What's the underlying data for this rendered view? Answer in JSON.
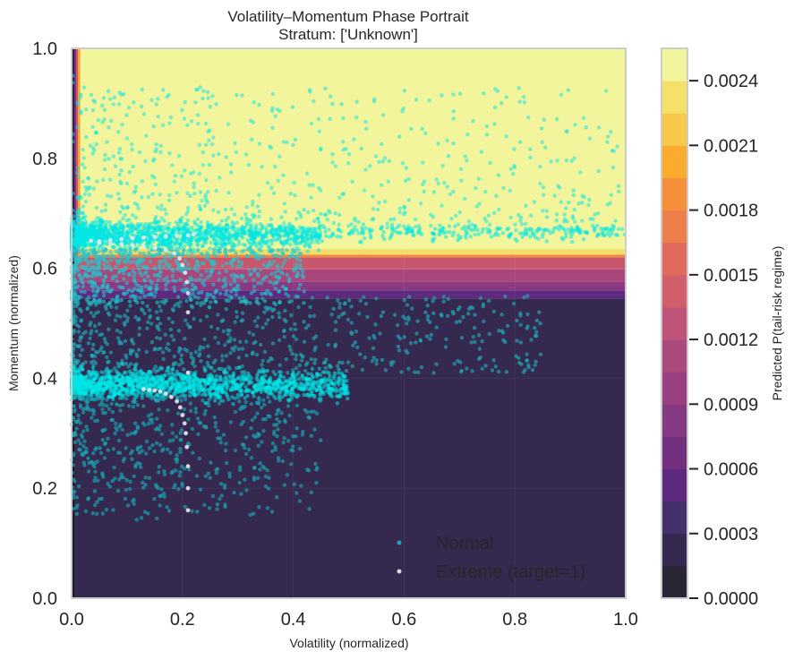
{
  "chart_data": {
    "type": "scatter",
    "title": "Volatility–Momentum Phase Portrait",
    "subtitle": "Stratum: ['Unknown']",
    "xlabel": "Volatility (normalized)",
    "ylabel": "Momentum (normalized)",
    "xlim": [
      0.0,
      1.0
    ],
    "ylim": [
      0.0,
      1.0
    ],
    "xticks": [
      "0.0",
      "0.2",
      "0.4",
      "0.6",
      "0.8",
      "1.0"
    ],
    "yticks": [
      "0.0",
      "0.2",
      "0.4",
      "0.6",
      "0.8",
      "1.0"
    ],
    "grid": true,
    "background": {
      "type": "filled_contour",
      "description": "Predicted P(tail-risk regime) over volatility x momentum",
      "regions": [
        {
          "momentum_range": [
            0.0,
            0.545
          ],
          "level": 0.00025,
          "color": "#35294f"
        },
        {
          "momentum_range": [
            0.545,
            0.56
          ],
          "level": 0.0006,
          "color": "#5e2a80"
        },
        {
          "momentum_range": [
            0.56,
            0.575
          ],
          "level": 0.0009,
          "color": "#8a3a82"
        },
        {
          "momentum_range": [
            0.575,
            0.598
          ],
          "level": 0.0011,
          "color": "#a9477c"
        },
        {
          "momentum_range": [
            0.598,
            0.62
          ],
          "level": 0.0013,
          "color": "#c8576e"
        },
        {
          "momentum_range": [
            0.62,
            0.625
          ],
          "level": 0.0018,
          "color": "#ef8a3b"
        },
        {
          "momentum_range": [
            0.625,
            0.635
          ],
          "level": 0.0023,
          "color": "#f2dc6a"
        },
        {
          "momentum_range": [
            0.635,
            1.0
          ],
          "level": 0.0025,
          "color": "#f2f59b"
        }
      ],
      "left_edge_low_volatility_strip": {
        "volatility_range": [
          0.0,
          0.015
        ],
        "colors": [
          "#1f1a2e",
          "#5e2a80",
          "#d0526a",
          "#f5a62a"
        ]
      }
    },
    "colorbar": {
      "label": "Predicted P(tail-risk regime)",
      "ticks": [
        "0.0000",
        "0.0003",
        "0.0006",
        "0.0009",
        "0.0012",
        "0.0015",
        "0.0018",
        "0.0021",
        "0.0024"
      ],
      "range": [
        0.0,
        0.00255
      ],
      "bands": [
        "#2b2635",
        "#35294f",
        "#44306a",
        "#5e2a80",
        "#72307f",
        "#863a84",
        "#9a4082",
        "#ad4a7c",
        "#c0547a",
        "#d25e6c",
        "#e26a5d",
        "#ee7e4a",
        "#f58f3a",
        "#fbab2e",
        "#f8c84c",
        "#f4e06a",
        "#f2f59b"
      ]
    },
    "series": [
      {
        "name": "Normal",
        "color": "#00e5e5",
        "opacity": 0.55,
        "clusters": [
          {
            "label": "upper band",
            "center": [
              0.12,
              0.655
            ],
            "x_extent": [
              0.0,
              1.0
            ],
            "y_spread": 0.02,
            "density": "very high near x<0.35"
          },
          {
            "label": "upper scatter",
            "x_range": [
              0.01,
              1.0
            ],
            "y_range": [
              0.66,
              0.99
            ],
            "density": "decreasing with height"
          },
          {
            "label": "lower band",
            "center": [
              0.15,
              0.385
            ],
            "x_extent": [
              0.0,
              0.5
            ],
            "y_spread": 0.02,
            "density": "very high"
          },
          {
            "label": "mid scatter",
            "x_range": [
              0.0,
              0.85
            ],
            "y_range": [
              0.41,
              0.62
            ]
          },
          {
            "label": "lower scatter",
            "x_range": [
              0.0,
              0.45
            ],
            "y_range": [
              0.13,
              0.36
            ]
          }
        ]
      },
      {
        "name": "Extreme (target=1)",
        "color": "#e6e6f0",
        "points_description": "two trajectories: row at momentum ~0.65 from vol 0.03-0.22 curving down to ~0.52 at vol 0.21; row at momentum ~0.37 from vol 0.13-0.21 descending to ~0.16 at vol 0.21",
        "points": [
          [
            0.035,
            0.65
          ],
          [
            0.05,
            0.649
          ],
          [
            0.07,
            0.651
          ],
          [
            0.09,
            0.653
          ],
          [
            0.11,
            0.655
          ],
          [
            0.13,
            0.656
          ],
          [
            0.15,
            0.657
          ],
          [
            0.17,
            0.658
          ],
          [
            0.19,
            0.659
          ],
          [
            0.21,
            0.66
          ],
          [
            0.22,
            0.662
          ],
          [
            0.05,
            0.646
          ],
          [
            0.07,
            0.645
          ],
          [
            0.09,
            0.644
          ],
          [
            0.11,
            0.642
          ],
          [
            0.13,
            0.64
          ],
          [
            0.15,
            0.637
          ],
          [
            0.17,
            0.633
          ],
          [
            0.185,
            0.627
          ],
          [
            0.195,
            0.618
          ],
          [
            0.2,
            0.606
          ],
          [
            0.205,
            0.592
          ],
          [
            0.208,
            0.575
          ],
          [
            0.21,
            0.555
          ],
          [
            0.21,
            0.52
          ],
          [
            0.13,
            0.38
          ],
          [
            0.14,
            0.379
          ],
          [
            0.15,
            0.378
          ],
          [
            0.16,
            0.376
          ],
          [
            0.17,
            0.372
          ],
          [
            0.18,
            0.366
          ],
          [
            0.19,
            0.358
          ],
          [
            0.196,
            0.347
          ],
          [
            0.2,
            0.333
          ],
          [
            0.204,
            0.318
          ],
          [
            0.206,
            0.3
          ],
          [
            0.208,
            0.275
          ],
          [
            0.21,
            0.24
          ],
          [
            0.21,
            0.2
          ],
          [
            0.21,
            0.16
          ],
          [
            0.21,
            0.41
          ]
        ]
      }
    ],
    "legend": {
      "position": "lower right",
      "entries": [
        "Normal",
        "Extreme (target=1)"
      ]
    }
  }
}
